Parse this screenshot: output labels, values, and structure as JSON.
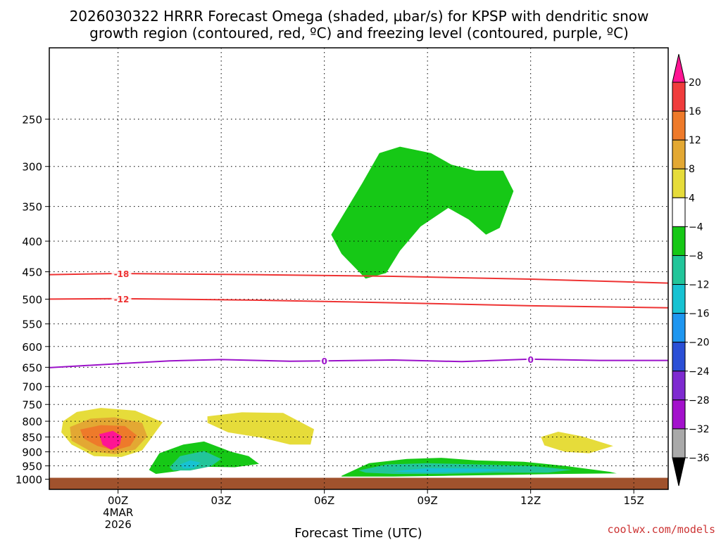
{
  "chart_data": {
    "type": "contour",
    "title_lines": [
      "2026030322 HRRR Forecast Omega (shaded, µbar/s) for KPSP with dendritic snow",
      "growth region (contoured, red, ºC) and freezing level (contoured, purple, ºC)"
    ],
    "xlabel": "Forecast Time (UTC)",
    "x_range_hours": [
      -2.0,
      16.0
    ],
    "x_ticks": [
      {
        "hour": 0,
        "lines": [
          "00Z",
          "4MAR",
          "2026"
        ]
      },
      {
        "hour": 3,
        "lines": [
          "03Z"
        ]
      },
      {
        "hour": 6,
        "lines": [
          "06Z"
        ]
      },
      {
        "hour": 9,
        "lines": [
          "09Z"
        ]
      },
      {
        "hour": 12,
        "lines": [
          "12Z"
        ]
      },
      {
        "hour": 15,
        "lines": [
          "15Z"
        ]
      }
    ],
    "ylabel": "Pressure (hPa)",
    "y_range_hpa": [
      1040,
      190
    ],
    "y_ticks": [
      250,
      300,
      350,
      400,
      450,
      500,
      550,
      600,
      650,
      700,
      750,
      800,
      850,
      900,
      950,
      1000
    ],
    "ground_level_hpa": 1000,
    "colorbar": {
      "levels": [
        20,
        16,
        12,
        8,
        4,
        -4,
        -8,
        -12,
        -16,
        -20,
        -24,
        -28,
        -32,
        -36
      ],
      "colors": [
        "#ff1493",
        "#f03c3c",
        "#ee7a2a",
        "#e3a833",
        "#e6dc3a",
        "#ffffff",
        "#16c816",
        "#22c59a",
        "#17c2d2",
        "#1e96f0",
        "#2b4fd6",
        "#7e2ad0",
        "#a311cc",
        "#a9a9a9",
        "#000000"
      ]
    },
    "omega_regions": [
      {
        "name": "upper-yellow-diamond",
        "level": 4,
        "pts": [
          [
            1.95,
            297
          ],
          [
            2.15,
            318
          ],
          [
            2.4,
            340
          ],
          [
            2.15,
            372
          ],
          [
            1.9,
            388
          ],
          [
            1.65,
            355
          ],
          [
            1.65,
            325
          ]
        ]
      },
      {
        "name": "green-upper-blob",
        "level": -4,
        "pts": [
          [
            7.6,
            285
          ],
          [
            8.2,
            278
          ],
          [
            9.1,
            285
          ],
          [
            9.7,
            298
          ],
          [
            10.4,
            305
          ],
          [
            11.2,
            305
          ],
          [
            11.5,
            330
          ],
          [
            11.1,
            380
          ],
          [
            10.7,
            390
          ],
          [
            10.2,
            368
          ],
          [
            9.6,
            352
          ],
          [
            8.8,
            378
          ],
          [
            8.2,
            415
          ],
          [
            7.8,
            452
          ],
          [
            7.2,
            462
          ],
          [
            6.5,
            420
          ],
          [
            6.2,
            390
          ],
          [
            7.1,
            320
          ]
        ]
      },
      {
        "name": "yellow-main-left",
        "level": 4,
        "pts": [
          [
            -1.8,
            462
          ],
          [
            -1.4,
            418
          ],
          [
            -0.9,
            448
          ],
          [
            -0.4,
            498
          ],
          [
            0.2,
            545
          ],
          [
            0.8,
            598
          ],
          [
            1.6,
            653
          ],
          [
            3.2,
            683
          ],
          [
            4.8,
            693
          ],
          [
            5.1,
            746
          ],
          [
            4.6,
            778
          ],
          [
            5.3,
            780
          ],
          [
            6.2,
            790
          ],
          [
            7.1,
            772
          ],
          [
            7.6,
            795
          ],
          [
            8.3,
            828
          ],
          [
            7.9,
            845
          ],
          [
            7.1,
            832
          ],
          [
            6.1,
            858
          ],
          [
            4.9,
            878
          ],
          [
            4.8,
            903
          ],
          [
            4.2,
            898
          ],
          [
            3.2,
            873
          ],
          [
            2.4,
            880
          ],
          [
            1.8,
            902
          ],
          [
            0.8,
            912
          ],
          [
            0.3,
            932
          ],
          [
            -0.9,
            948
          ],
          [
            -2.0,
            948
          ],
          [
            -2.0,
            760
          ],
          [
            -1.55,
            735
          ],
          [
            -1.5,
            700
          ],
          [
            -1.7,
            650
          ],
          [
            -1.85,
            545
          ]
        ]
      },
      {
        "name": "yellow-right-region",
        "level": 4,
        "pts": [
          [
            8.6,
            535
          ],
          [
            9.8,
            512
          ],
          [
            10.5,
            548
          ],
          [
            11.2,
            583
          ],
          [
            12.6,
            582
          ],
          [
            13.4,
            605
          ],
          [
            15.4,
            603
          ],
          [
            15.9,
            605
          ],
          [
            14.5,
            615
          ],
          [
            14.5,
            660
          ],
          [
            12.1,
            662
          ],
          [
            11.6,
            658
          ],
          [
            11.4,
            690
          ],
          [
            10.3,
            705
          ],
          [
            11.7,
            738
          ],
          [
            13.2,
            748
          ],
          [
            14.6,
            758
          ],
          [
            15.2,
            842
          ],
          [
            16.0,
            895
          ],
          [
            16.0,
            952
          ],
          [
            15.7,
            955
          ],
          [
            14.8,
            958
          ],
          [
            14.2,
            908
          ],
          [
            13.1,
            902
          ],
          [
            12.3,
            892
          ],
          [
            11.3,
            862
          ],
          [
            10.6,
            870
          ],
          [
            9.8,
            862
          ],
          [
            9.4,
            802
          ],
          [
            10.4,
            757
          ],
          [
            10.1,
            665
          ],
          [
            9.7,
            650
          ],
          [
            9.1,
            618
          ],
          [
            9.5,
            563
          ],
          [
            8.9,
            582
          ],
          [
            7.9,
            565
          ]
        ]
      },
      {
        "name": "yellow-far-right",
        "level": 4,
        "pts": [
          [
            15.1,
            600
          ],
          [
            15.7,
            575
          ],
          [
            16.0,
            560
          ],
          [
            16.0,
            670
          ],
          [
            15.2,
            665
          ]
        ]
      },
      {
        "name": "gold-main",
        "level": 8,
        "pts": [
          [
            -1.6,
            800
          ],
          [
            -1.2,
            772
          ],
          [
            -0.5,
            760
          ],
          [
            0.5,
            768
          ],
          [
            1.3,
            803
          ],
          [
            1.0,
            848
          ],
          [
            0.7,
            895
          ],
          [
            0.1,
            918
          ],
          [
            -0.7,
            915
          ],
          [
            -1.35,
            875
          ],
          [
            -1.65,
            835
          ]
        ]
      },
      {
        "name": "gold-middle",
        "level": 8,
        "pts": [
          [
            2.6,
            785
          ],
          [
            3.6,
            773
          ],
          [
            4.8,
            775
          ],
          [
            5.7,
            825
          ],
          [
            5.6,
            875
          ],
          [
            5.0,
            875
          ],
          [
            4.2,
            853
          ],
          [
            3.2,
            835
          ],
          [
            2.6,
            805
          ]
        ]
      },
      {
        "name": "gold-right",
        "level": 8,
        "pts": [
          [
            12.3,
            850
          ],
          [
            12.8,
            833
          ],
          [
            13.5,
            848
          ],
          [
            14.4,
            880
          ],
          [
            13.7,
            905
          ],
          [
            13.0,
            900
          ],
          [
            12.4,
            878
          ]
        ]
      },
      {
        "name": "orange-core",
        "level": 12,
        "pts": [
          [
            -1.4,
            818
          ],
          [
            -0.8,
            792
          ],
          [
            -0.1,
            788
          ],
          [
            0.7,
            805
          ],
          [
            0.85,
            848
          ],
          [
            0.5,
            892
          ],
          [
            -0.1,
            908
          ],
          [
            -0.8,
            898
          ],
          [
            -1.35,
            862
          ]
        ]
      },
      {
        "name": "red-core",
        "level": 16,
        "pts": [
          [
            -1.1,
            826
          ],
          [
            -0.5,
            812
          ],
          [
            0.2,
            815
          ],
          [
            0.55,
            845
          ],
          [
            0.35,
            880
          ],
          [
            -0.1,
            895
          ],
          [
            -0.6,
            880
          ],
          [
            -1.0,
            855
          ]
        ]
      },
      {
        "name": "pink-core",
        "level": 20,
        "pts": [
          [
            -0.55,
            841
          ],
          [
            -0.15,
            830
          ],
          [
            0.1,
            847
          ],
          [
            0.05,
            877
          ],
          [
            -0.2,
            893
          ],
          [
            -0.45,
            876
          ]
        ]
      },
      {
        "name": "green-lower-left",
        "level": -4,
        "pts": [
          [
            0.9,
            965
          ],
          [
            1.2,
            905
          ],
          [
            1.9,
            875
          ],
          [
            2.5,
            865
          ],
          [
            3.3,
            900
          ],
          [
            3.8,
            915
          ],
          [
            4.1,
            943
          ],
          [
            3.4,
            955
          ],
          [
            2.3,
            953
          ],
          [
            1.7,
            970
          ],
          [
            1.1,
            980
          ]
        ]
      },
      {
        "name": "teal-lower-left",
        "level": -8,
        "pts": [
          [
            1.5,
            955
          ],
          [
            1.8,
            915
          ],
          [
            2.5,
            897
          ],
          [
            3.0,
            925
          ],
          [
            2.7,
            952
          ],
          [
            2.1,
            967
          ],
          [
            1.6,
            967
          ]
        ]
      },
      {
        "name": "cyan-lower-left",
        "level": -12,
        "pts": [
          [
            1.8,
            945
          ],
          [
            2.1,
            930
          ],
          [
            2.4,
            938
          ],
          [
            2.2,
            958
          ],
          [
            1.9,
            960
          ]
        ]
      },
      {
        "name": "green-lower-right",
        "level": -4,
        "pts": [
          [
            6.5,
            987
          ],
          [
            7.3,
            940
          ],
          [
            8.4,
            925
          ],
          [
            9.4,
            921
          ],
          [
            10.4,
            930
          ],
          [
            11.8,
            935
          ],
          [
            13.0,
            950
          ],
          [
            14.3,
            972
          ],
          [
            14.5,
            978
          ],
          [
            13.0,
            980
          ],
          [
            11.5,
            983
          ],
          [
            9.5,
            987
          ],
          [
            8.0,
            990
          ],
          [
            6.5,
            990
          ]
        ]
      },
      {
        "name": "teal-lower-right",
        "level": -8,
        "pts": [
          [
            7.0,
            967
          ],
          [
            7.8,
            945
          ],
          [
            9.0,
            940
          ],
          [
            10.5,
            945
          ],
          [
            12.0,
            950
          ],
          [
            13.2,
            965
          ],
          [
            12.5,
            975
          ],
          [
            11.0,
            975
          ],
          [
            9.5,
            980
          ],
          [
            8.0,
            980
          ],
          [
            7.2,
            975
          ]
        ]
      },
      {
        "name": "cyan-lower-right",
        "level": -12,
        "pts": [
          [
            8.0,
            970
          ],
          [
            9.0,
            958
          ],
          [
            10.5,
            960
          ],
          [
            11.5,
            965
          ],
          [
            10.5,
            972
          ],
          [
            9.0,
            975
          ],
          [
            8.3,
            973
          ]
        ]
      }
    ],
    "contour_lines": [
      {
        "name": "dgz-minus-18",
        "label": "-18",
        "color": "#ee3333",
        "label_hour": 0.1,
        "pts": [
          [
            -2,
            455
          ],
          [
            0,
            453
          ],
          [
            4,
            455
          ],
          [
            8,
            458
          ],
          [
            12,
            463
          ],
          [
            16,
            470
          ]
        ]
      },
      {
        "name": "dgz-minus-12",
        "label": "-12",
        "color": "#ee3333",
        "label_hour": 0.1,
        "pts": [
          [
            -2,
            500
          ],
          [
            0,
            499
          ],
          [
            4,
            502
          ],
          [
            8,
            507
          ],
          [
            12,
            513
          ],
          [
            16,
            517
          ]
        ]
      },
      {
        "name": "freezing-level-0",
        "label": "0",
        "color": "#9b12c9",
        "label_hour": 6.0,
        "label_hour2": 12.0,
        "pts": [
          [
            -2,
            651
          ],
          [
            0,
            641
          ],
          [
            1.5,
            634
          ],
          [
            3,
            631
          ],
          [
            5,
            635
          ],
          [
            6,
            634
          ],
          [
            8,
            632
          ],
          [
            10,
            636
          ],
          [
            12,
            630
          ],
          [
            14,
            633
          ],
          [
            16,
            633
          ]
        ]
      }
    ]
  },
  "credit": "coolwx.com/models"
}
